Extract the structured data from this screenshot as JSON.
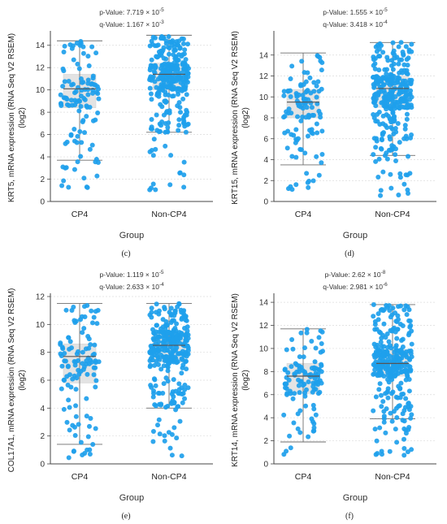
{
  "chart_data": [
    {
      "panel_label": "(c)",
      "type": "box-scatter",
      "p_value": "p-Value: 7.719 × 10",
      "p_exp": "-5",
      "q_value": "q-Value: 1.167 × 10",
      "q_exp": "-3",
      "ylabel_line1": "KRT5, mRNA expression (RNA Seq V2 RSEM)",
      "ylabel_line2": "(log2)",
      "xlabel": "Group",
      "categories": [
        "CP4",
        "Non-CP4"
      ],
      "ylim": [
        0,
        15
      ],
      "yticks": [
        0,
        2,
        4,
        6,
        8,
        10,
        12,
        14
      ],
      "boxes": [
        {
          "min": 3.7,
          "q1": 8.4,
          "median": 10.1,
          "q3": 11.4,
          "max": 14.4
        },
        {
          "min": 6.2,
          "q1": 10.0,
          "median": 11.4,
          "q3": 12.4,
          "max": 14.9
        }
      ],
      "n_points": [
        110,
        300
      ]
    },
    {
      "panel_label": "(d)",
      "type": "box-scatter",
      "p_value": "p-Value: 1.555 × 10",
      "p_exp": "-5",
      "q_value": "q-Value: 3.418 × 10",
      "q_exp": "-4",
      "ylabel_line1": "KRT15, mRNA expression (RNA Seq V2 RSEM)",
      "ylabel_line2": "(log2)",
      "xlabel": "Group",
      "categories": [
        "CP4",
        "Non-CP4"
      ],
      "ylim": [
        0,
        16
      ],
      "yticks": [
        0,
        2,
        4,
        6,
        8,
        10,
        12,
        14
      ],
      "boxes": [
        {
          "min": 3.5,
          "q1": 8.0,
          "median": 9.5,
          "q3": 10.7,
          "max": 14.2
        },
        {
          "min": 4.4,
          "q1": 9.0,
          "median": 10.8,
          "q3": 12.0,
          "max": 15.2
        }
      ],
      "n_points": [
        110,
        300
      ]
    },
    {
      "panel_label": "(e)",
      "type": "box-scatter",
      "p_value": "p-Value: 1.119 × 10",
      "p_exp": "-5",
      "q_value": "q-Value: 2.633 × 10",
      "q_exp": "-4",
      "ylabel_line1": "COL17A1, mRNA expression (RNA Seq V2 RSEM)",
      "ylabel_line2": "(log2)",
      "xlabel": "Group",
      "categories": [
        "CP4",
        "Non-CP4"
      ],
      "ylim": [
        0,
        12
      ],
      "yticks": [
        0,
        2,
        4,
        6,
        8,
        10,
        12
      ],
      "boxes": [
        {
          "min": 1.4,
          "q1": 5.8,
          "median": 7.7,
          "q3": 8.6,
          "max": 11.5
        },
        {
          "min": 4.0,
          "q1": 7.3,
          "median": 8.5,
          "q3": 9.5,
          "max": 11.5
        }
      ],
      "n_points": [
        110,
        300
      ]
    },
    {
      "panel_label": "(f)",
      "type": "box-scatter",
      "p_value": "p-Value: 2.62 × 10",
      "p_exp": "-8",
      "q_value": "q-Value: 2.981 × 10",
      "q_exp": "-6",
      "ylabel_line1": "KRT14, mRNA expression (RNA Seq V2 RSEM)",
      "ylabel_line2": "(log2)",
      "xlabel": "Group",
      "categories": [
        "CP4",
        "Non-CP4"
      ],
      "ylim": [
        0,
        14.5
      ],
      "yticks": [
        0,
        2,
        4,
        6,
        8,
        10,
        12,
        14
      ],
      "boxes": [
        {
          "min": 1.9,
          "q1": 6.1,
          "median": 7.6,
          "q3": 8.7,
          "max": 11.7
        },
        {
          "min": 3.9,
          "q1": 7.6,
          "median": 8.7,
          "q3": 9.9,
          "max": 13.8
        }
      ],
      "n_points": [
        110,
        300
      ]
    }
  ],
  "colors": {
    "point": "#1ea0ec",
    "box_fill": "#e3e3e3",
    "whisker": "#6e6e6e",
    "axis": "#444444",
    "grid": "#dcdcdc"
  }
}
